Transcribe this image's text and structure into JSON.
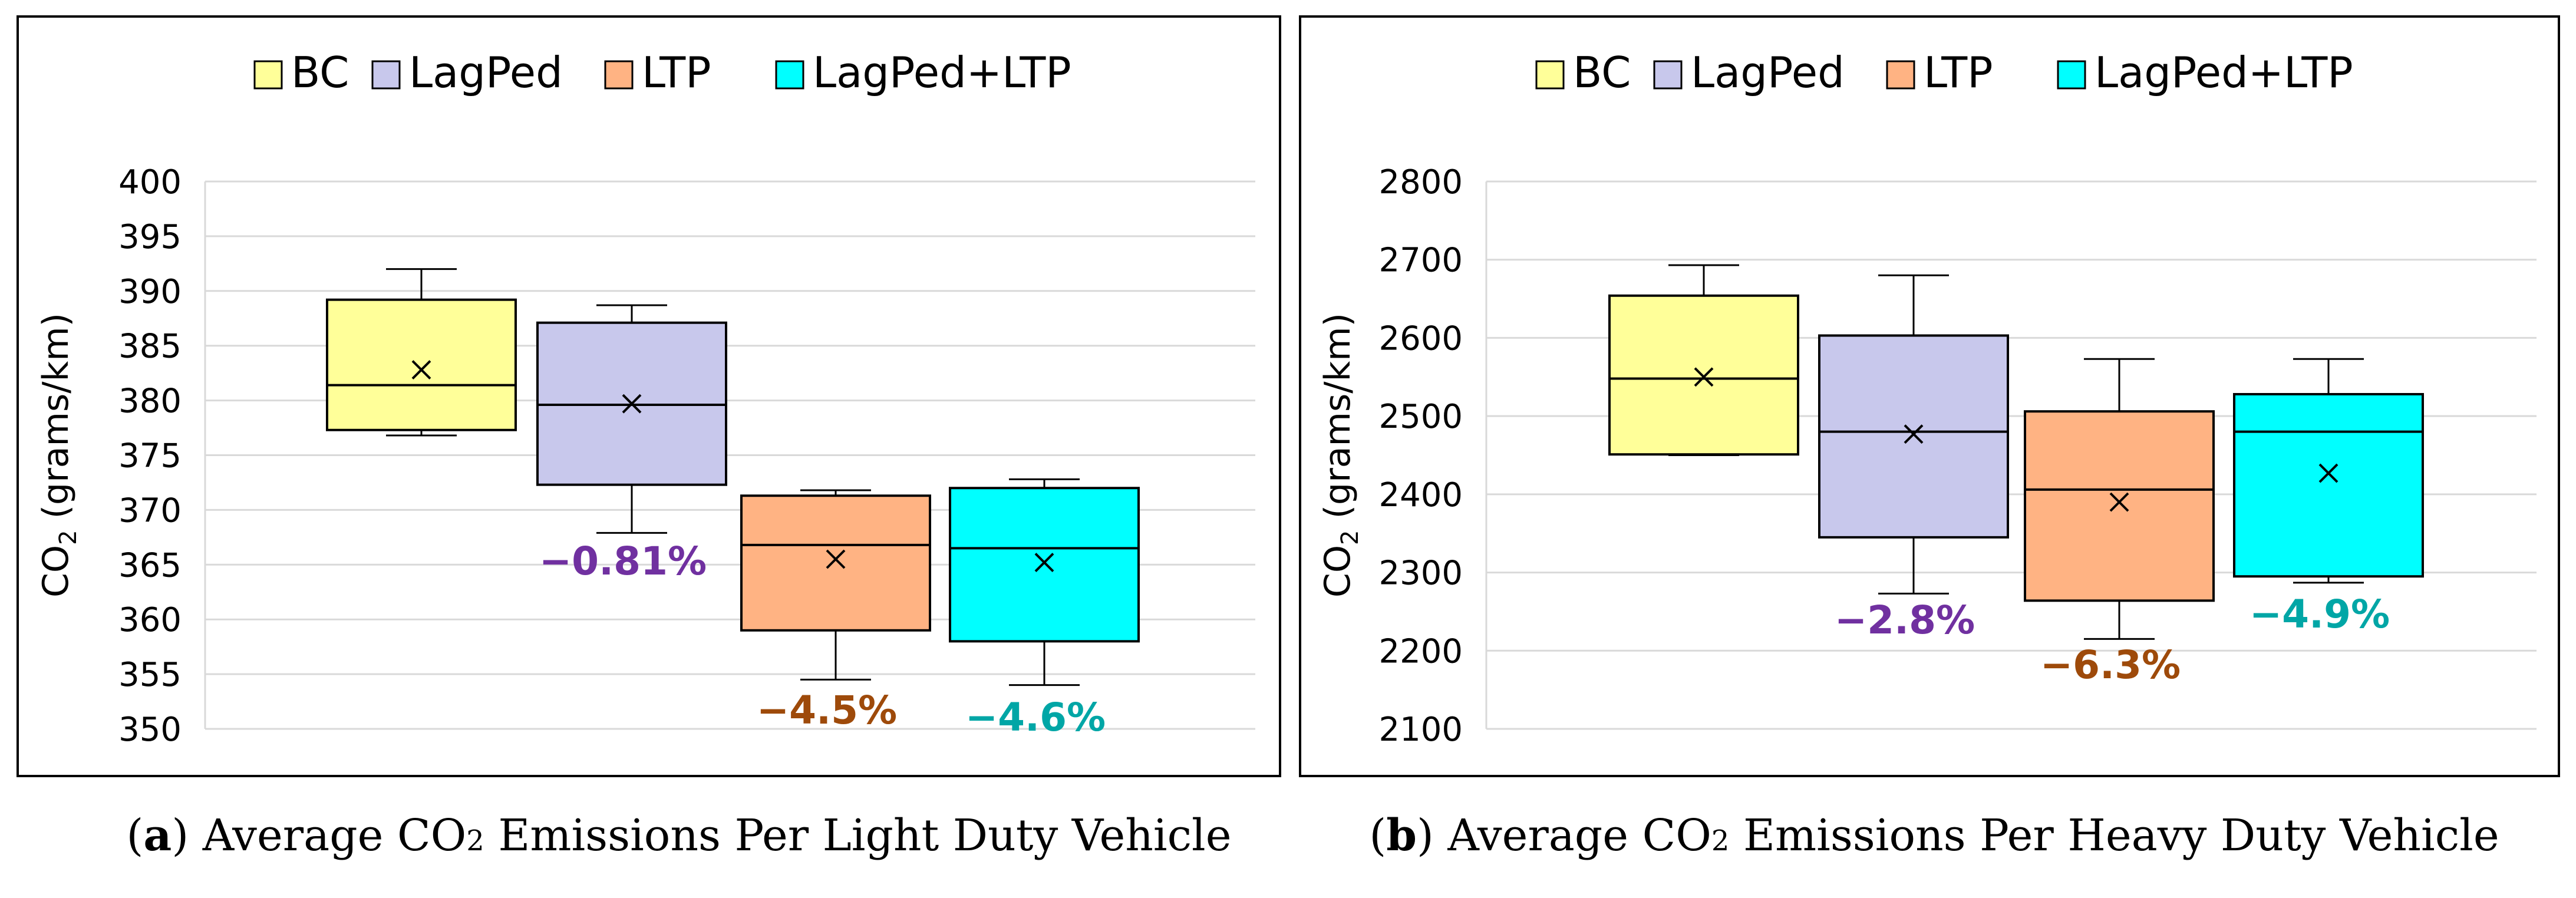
{
  "chart_data": [
    {
      "type": "box",
      "panel_letter": "a",
      "caption_pre": "Average CO",
      "caption_sub": "2",
      "caption_post": " Emissions Per Light Duty Vehicle",
      "ylabel_pre": "CO",
      "ylabel_sub": "2",
      "ylabel_post": " (grams/km)",
      "ylim": [
        350,
        400
      ],
      "yticks": [
        350,
        355,
        360,
        365,
        370,
        375,
        380,
        385,
        390,
        395,
        400
      ],
      "grid": true,
      "legend_position": "top",
      "series": [
        {
          "name": "BC",
          "color": "#ffff99",
          "whisker_low": 376.8,
          "q1": 377.3,
          "median": 381.4,
          "q3": 389.2,
          "whisker_high": 392.0,
          "mean": 382.8,
          "change_label": ""
        },
        {
          "name": "LagPed",
          "color": "#c8c8ec",
          "whisker_low": 367.9,
          "q1": 372.3,
          "median": 379.6,
          "q3": 387.1,
          "whisker_high": 388.7,
          "mean": 379.7,
          "change_label": "−0.81%",
          "change_color": "#7030a0"
        },
        {
          "name": "LTP",
          "color": "#ffb383",
          "whisker_low": 354.5,
          "q1": 359.0,
          "median": 366.8,
          "q3": 371.3,
          "whisker_high": 371.8,
          "mean": 365.5,
          "change_label": "−4.5%",
          "change_color": "#9e4a0a"
        },
        {
          "name": "LagPed+LTP",
          "color": "#00ffff",
          "whisker_low": 354.0,
          "q1": 358.0,
          "median": 366.5,
          "q3": 372.0,
          "whisker_high": 372.8,
          "mean": 365.2,
          "change_label": "−4.6%",
          "change_color": "#00a6a6"
        }
      ]
    },
    {
      "type": "box",
      "panel_letter": "b",
      "caption_pre": "Average CO",
      "caption_sub": "2",
      "caption_post": " Emissions Per Heavy Duty Vehicle",
      "ylabel_pre": "CO",
      "ylabel_sub": "2",
      "ylabel_post": " (grams/km)",
      "ylim": [
        2100,
        2800
      ],
      "yticks": [
        2100,
        2200,
        2300,
        2400,
        2500,
        2600,
        2700,
        2800
      ],
      "grid": true,
      "legend_position": "top",
      "series": [
        {
          "name": "BC",
          "color": "#ffff99",
          "whisker_low": 2450,
          "q1": 2451,
          "median": 2548,
          "q3": 2654,
          "whisker_high": 2693,
          "mean": 2550,
          "change_label": ""
        },
        {
          "name": "LagPed",
          "color": "#c8c8ec",
          "whisker_low": 2273,
          "q1": 2345,
          "median": 2480,
          "q3": 2603,
          "whisker_high": 2680,
          "mean": 2477,
          "change_label": "−2.8%",
          "change_color": "#7030a0"
        },
        {
          "name": "LTP",
          "color": "#ffb383",
          "whisker_low": 2215,
          "q1": 2264,
          "median": 2406,
          "q3": 2506,
          "whisker_high": 2573,
          "mean": 2390,
          "change_label": "−6.3%",
          "change_color": "#9e4a0a"
        },
        {
          "name": "LagPed+LTP",
          "color": "#00ffff",
          "whisker_low": 2287,
          "q1": 2295,
          "median": 2480,
          "q3": 2528,
          "whisker_high": 2573,
          "mean": 2427,
          "change_label": "−4.9%",
          "change_color": "#00a6a6"
        }
      ]
    }
  ]
}
